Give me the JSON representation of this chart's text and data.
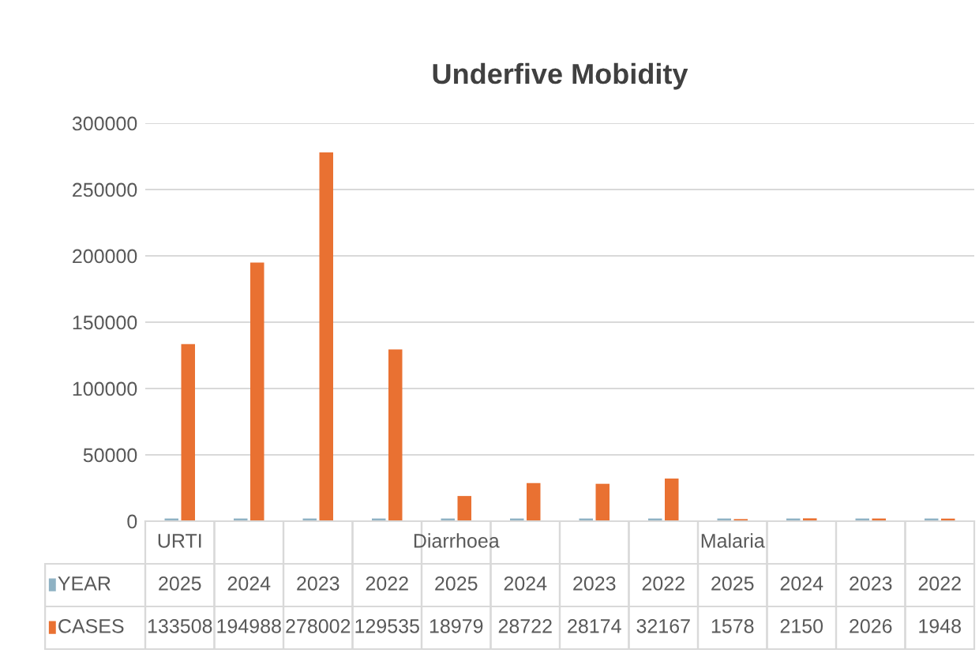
{
  "chart_data": {
    "type": "bar",
    "title": "Underfive Mobidity",
    "categories": [
      "URTI",
      null,
      null,
      null,
      "Diarrhoea",
      null,
      null,
      null,
      "Malaria",
      null,
      null,
      null
    ],
    "series": [
      {
        "name": "YEAR",
        "color": "#8fb2c4",
        "values": [
          2025,
          2024,
          2023,
          2022,
          2025,
          2024,
          2023,
          2022,
          2025,
          2024,
          2023,
          2022
        ]
      },
      {
        "name": "CASES",
        "color": "#e97132",
        "values": [
          133508,
          194988,
          278002,
          129535,
          18979,
          28722,
          28174,
          32167,
          1578,
          2150,
          2026,
          1948
        ]
      }
    ],
    "ylim": [
      0,
      300000
    ],
    "yticks": [
      0,
      50000,
      100000,
      150000,
      200000,
      250000,
      300000
    ],
    "grid": "y",
    "legend": "bottom",
    "data_labels": true
  }
}
